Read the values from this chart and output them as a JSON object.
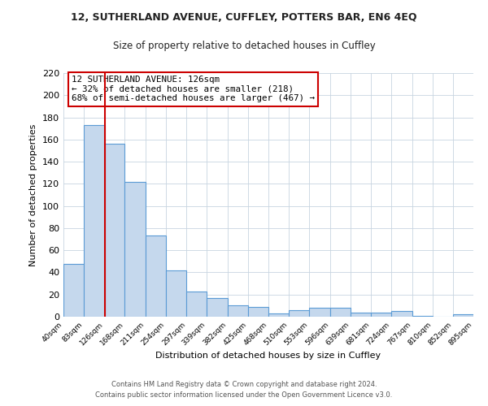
{
  "title": "12, SUTHERLAND AVENUE, CUFFLEY, POTTERS BAR, EN6 4EQ",
  "subtitle": "Size of property relative to detached houses in Cuffley",
  "xlabel": "Distribution of detached houses by size in Cuffley",
  "ylabel": "Number of detached properties",
  "bar_edges": [
    40,
    83,
    126,
    168,
    211,
    254,
    297,
    339,
    382,
    425,
    468,
    510,
    553,
    596,
    639,
    681,
    724,
    767,
    810,
    852,
    895
  ],
  "bar_heights": [
    48,
    173,
    156,
    122,
    73,
    42,
    23,
    17,
    10,
    9,
    3,
    6,
    8,
    8,
    4,
    4,
    5,
    1,
    0,
    2
  ],
  "bar_color": "#c5d8ed",
  "bar_edge_color": "#5b9bd5",
  "property_line_x": 126,
  "property_line_color": "#cc0000",
  "annotation_box_edge_color": "#cc0000",
  "annotation_lines": [
    "12 SUTHERLAND AVENUE: 126sqm",
    "← 32% of detached houses are smaller (218)",
    "68% of semi-detached houses are larger (467) →"
  ],
  "ylim": [
    0,
    220
  ],
  "yticks": [
    0,
    20,
    40,
    60,
    80,
    100,
    120,
    140,
    160,
    180,
    200,
    220
  ],
  "tick_labels": [
    "40sqm",
    "83sqm",
    "126sqm",
    "168sqm",
    "211sqm",
    "254sqm",
    "297sqm",
    "339sqm",
    "382sqm",
    "425sqm",
    "468sqm",
    "510sqm",
    "553sqm",
    "596sqm",
    "639sqm",
    "681sqm",
    "724sqm",
    "767sqm",
    "810sqm",
    "852sqm",
    "895sqm"
  ],
  "footer_lines": [
    "Contains HM Land Registry data © Crown copyright and database right 2024.",
    "Contains public sector information licensed under the Open Government Licence v3.0."
  ],
  "background_color": "#ffffff",
  "grid_color": "#c8d4e0"
}
